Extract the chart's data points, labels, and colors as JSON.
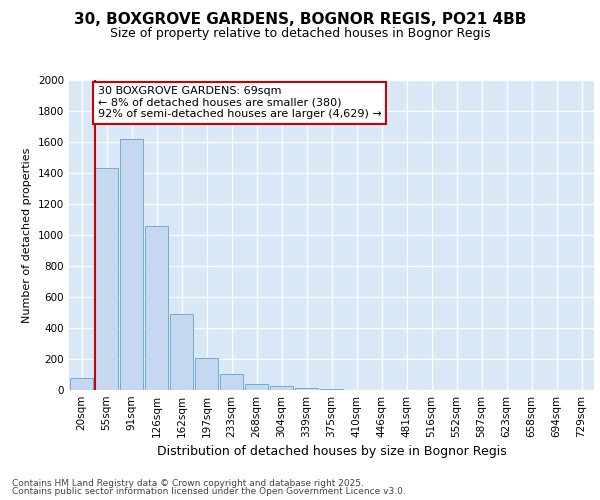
{
  "title_line1": "30, BOXGROVE GARDENS, BOGNOR REGIS, PO21 4BB",
  "title_line2": "Size of property relative to detached houses in Bognor Regis",
  "xlabel": "Distribution of detached houses by size in Bognor Regis",
  "ylabel": "Number of detached properties",
  "categories": [
    "20sqm",
    "55sqm",
    "91sqm",
    "126sqm",
    "162sqm",
    "197sqm",
    "233sqm",
    "268sqm",
    "304sqm",
    "339sqm",
    "375sqm",
    "410sqm",
    "446sqm",
    "481sqm",
    "516sqm",
    "552sqm",
    "587sqm",
    "623sqm",
    "658sqm",
    "694sqm",
    "729sqm"
  ],
  "values": [
    80,
    1430,
    1620,
    1060,
    490,
    205,
    105,
    40,
    25,
    15,
    5,
    0,
    0,
    0,
    0,
    0,
    0,
    0,
    0,
    0,
    0
  ],
  "bar_color": "#c5d8f0",
  "bar_edgecolor": "#6baed6",
  "background_color": "#d9e8f6",
  "grid_color": "#ffffff",
  "fig_bg_color": "#ffffff",
  "vline_x_pos": 1.5,
  "vline_color": "#cc0000",
  "annotation_text": "30 BOXGROVE GARDENS: 69sqm\n← 8% of detached houses are smaller (380)\n92% of semi-detached houses are larger (4,629) →",
  "annotation_box_facecolor": "#ffffff",
  "annotation_box_edgecolor": "#cc0000",
  "footer_line1": "Contains HM Land Registry data © Crown copyright and database right 2025.",
  "footer_line2": "Contains public sector information licensed under the Open Government Licence v3.0.",
  "ylim": [
    0,
    2000
  ],
  "yticks": [
    0,
    200,
    400,
    600,
    800,
    1000,
    1200,
    1400,
    1600,
    1800,
    2000
  ],
  "title_fontsize": 11,
  "subtitle_fontsize": 9,
  "xlabel_fontsize": 9,
  "ylabel_fontsize": 8,
  "tick_fontsize": 7.5,
  "annotation_fontsize": 8,
  "footer_fontsize": 6.5
}
